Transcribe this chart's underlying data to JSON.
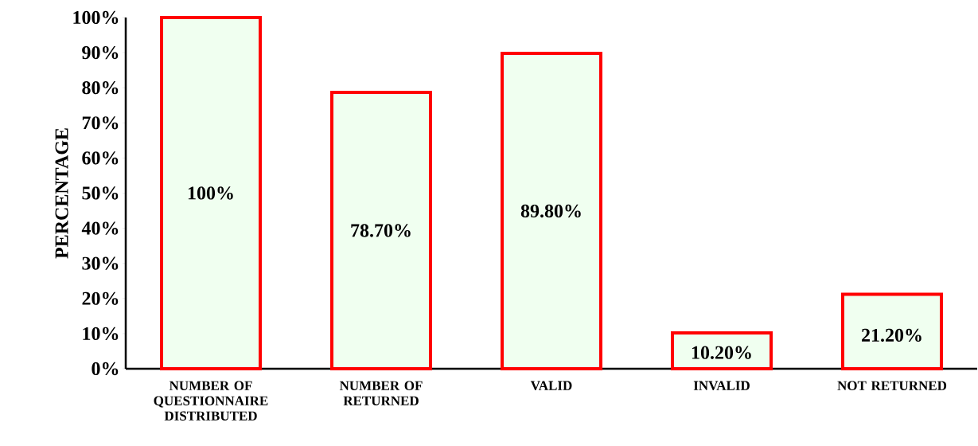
{
  "chart_data": {
    "type": "bar",
    "ylabel": "PERCENTAGE",
    "categories": [
      "NUMBER OF QUESTIONNAIRE DISTRIBUTED",
      "NUMBER OF RETURNED",
      "VALID",
      "INVALID",
      "NOT RETURNED"
    ],
    "values": [
      100,
      78.7,
      89.8,
      10.2,
      21.2
    ],
    "value_labels": [
      "100%",
      "78.70%",
      "89.80%",
      "10.20%",
      "21.20%"
    ],
    "color": "#ff0000",
    "ylim": [
      0,
      100
    ],
    "yticks": [
      {
        "value": 0,
        "label": "0%"
      },
      {
        "value": 10,
        "label": "10%"
      },
      {
        "value": 20,
        "label": "20%"
      },
      {
        "value": 30,
        "label": "30%"
      },
      {
        "value": 40,
        "label": "40%"
      },
      {
        "value": 50,
        "label": "50%"
      },
      {
        "value": 60,
        "label": "60%"
      },
      {
        "value": 70,
        "label": "70%"
      },
      {
        "value": 80,
        "label": "80%"
      },
      {
        "value": 90,
        "label": "90%"
      },
      {
        "value": 100,
        "label": "100%"
      }
    ],
    "grid": false,
    "legend": false
  }
}
